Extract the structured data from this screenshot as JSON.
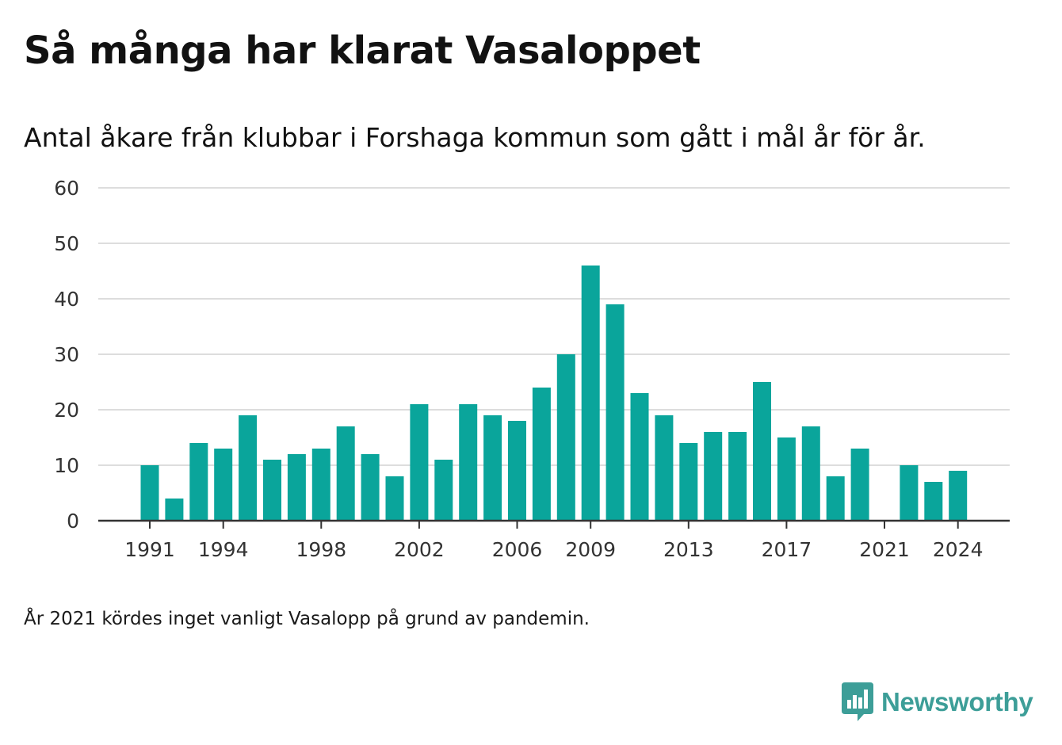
{
  "header": {
    "title": "Så många har klarat Vasaloppet",
    "subtitle": "Antal åkare från klubbar i Forshaga kommun som gått i mål år för år."
  },
  "footnote": "År 2021 kördes inget vanligt Vasalopp på grund av pandemin.",
  "brand": {
    "name": "Newsworthy",
    "logo_icon": "newsworthy-logo-icon",
    "color": "#3d9e98"
  },
  "colors": {
    "bar": "#0aa59b",
    "grid": "#dddddd",
    "axis": "#333333",
    "tick_text": "#333333"
  },
  "chart_data": {
    "type": "bar",
    "title": "Så många har klarat Vasaloppet",
    "subtitle": "Antal åkare från klubbar i Forshaga kommun som gått i mål år för år.",
    "x": [
      1991,
      1992,
      1993,
      1994,
      1995,
      1996,
      1997,
      1998,
      1999,
      2000,
      2001,
      2002,
      2003,
      2004,
      2005,
      2006,
      2007,
      2008,
      2009,
      2010,
      2011,
      2012,
      2013,
      2014,
      2015,
      2016,
      2017,
      2018,
      2019,
      2020,
      2021,
      2022,
      2023,
      2024
    ],
    "values": [
      10,
      4,
      14,
      13,
      19,
      11,
      12,
      13,
      17,
      12,
      8,
      21,
      11,
      21,
      19,
      18,
      24,
      30,
      46,
      39,
      23,
      19,
      14,
      16,
      16,
      25,
      15,
      17,
      8,
      13,
      0,
      10,
      7,
      9
    ],
    "x_ticks": [
      1991,
      1994,
      1998,
      2002,
      2006,
      2009,
      2013,
      2017,
      2021,
      2024
    ],
    "y_ticks": [
      0,
      10,
      20,
      30,
      40,
      50,
      60
    ],
    "ylim": [
      0,
      60
    ],
    "xlabel": "",
    "ylabel": "",
    "grid": true,
    "legend": "none"
  }
}
